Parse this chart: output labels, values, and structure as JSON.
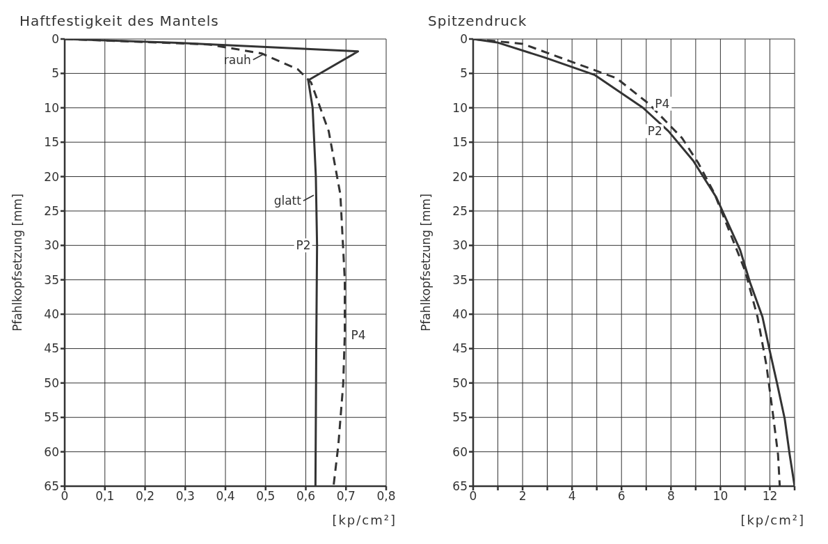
{
  "chart_data": [
    {
      "type": "line",
      "title": "Haftfestigkeit des Mantels",
      "xlabel": "[kp/cm²]",
      "ylabel": "Pfahlkopfsetzung [mm]",
      "xlim": [
        0,
        0.8
      ],
      "xticks": [
        0,
        {
          "value": 0.1,
          "label": "0,1"
        },
        {
          "value": 0.2,
          "label": "0,2"
        },
        {
          "value": 0.3,
          "label": "0,3"
        },
        {
          "value": 0.4,
          "label": "0,4"
        },
        {
          "value": 0.5,
          "label": "0,5"
        },
        {
          "value": 0.6,
          "label": "0,6"
        },
        {
          "value": 0.7,
          "label": "0,7"
        },
        {
          "value": 0.8,
          "label": "0,8"
        }
      ],
      "ylim": [
        65,
        0
      ],
      "yticks": [
        0,
        5,
        10,
        15,
        20,
        25,
        30,
        35,
        40,
        45,
        50,
        55,
        60,
        65
      ],
      "grid": true,
      "series": [
        {
          "name": "P2",
          "color": "#333333",
          "line_style": "solid",
          "x": [
            0,
            0.3,
            0.73,
            0.606,
            0.617,
            0.625,
            0.628,
            0.626,
            0.624
          ],
          "values": [
            0,
            0.6,
            1.8,
            6,
            10,
            20,
            30,
            45,
            65
          ]
        },
        {
          "name": "P4",
          "color": "#333333",
          "line_style": "dashed",
          "x": [
            0,
            0.36,
            0.49,
            0.58,
            0.613,
            0.657,
            0.686,
            0.697,
            0.697,
            0.693,
            0.681,
            0.669
          ],
          "values": [
            0,
            0.8,
            2.1,
            4.4,
            6.3,
            13.4,
            22.6,
            35,
            43,
            50.2,
            59,
            65
          ]
        }
      ],
      "annotations": [
        {
          "text": "rauh",
          "x": 0.5,
          "y": 2
        },
        {
          "text": "glatt",
          "x": 0.625,
          "y": 22.5
        }
      ]
    },
    {
      "type": "line",
      "title": "Spitzendruck",
      "xlabel": "[kp/cm²]",
      "ylabel": "Pfahlkopfsetzung [mm]",
      "xlim": [
        0,
        13
      ],
      "xticks": [
        0,
        {
          "value": 1,
          "label": null
        },
        2,
        {
          "value": 3,
          "label": null
        },
        4,
        {
          "value": 5,
          "label": null
        },
        6,
        {
          "value": 7,
          "label": null
        },
        8,
        {
          "value": 9,
          "label": null
        },
        10,
        {
          "value": 11,
          "label": null
        },
        12,
        {
          "value": 13,
          "label": null
        }
      ],
      "ylim": [
        65,
        0
      ],
      "yticks": [
        0,
        5,
        10,
        15,
        20,
        25,
        30,
        35,
        40,
        45,
        50,
        55,
        60,
        65
      ],
      "grid": true,
      "series": [
        {
          "name": "P2",
          "color": "#333333",
          "line_style": "solid",
          "x": [
            0,
            0.97,
            2.9,
            4.9,
            6.87,
            7.9,
            8.9,
            9.83,
            10.8,
            11.2,
            11.7,
            12.0,
            12.3,
            12.6,
            12.8,
            13
          ],
          "values": [
            0,
            0.5,
            2.7,
            5.2,
            10,
            13.4,
            17.7,
            23,
            30.7,
            35.4,
            40.4,
            45.4,
            50.2,
            55.2,
            60.4,
            65
          ]
        },
        {
          "name": "P4",
          "color": "#333333",
          "line_style": "dashed",
          "x": [
            0,
            2.0,
            3.9,
            5.8,
            7.1,
            8.45,
            9.1,
            9.75,
            11.0,
            11.5,
            11.86,
            12.13,
            12.33,
            12.4
          ],
          "values": [
            0,
            0.7,
            3.2,
            5.7,
            9.4,
            14.4,
            18,
            22.4,
            33.7,
            40.4,
            47.4,
            54.7,
            60.4,
            65
          ]
        }
      ]
    }
  ]
}
